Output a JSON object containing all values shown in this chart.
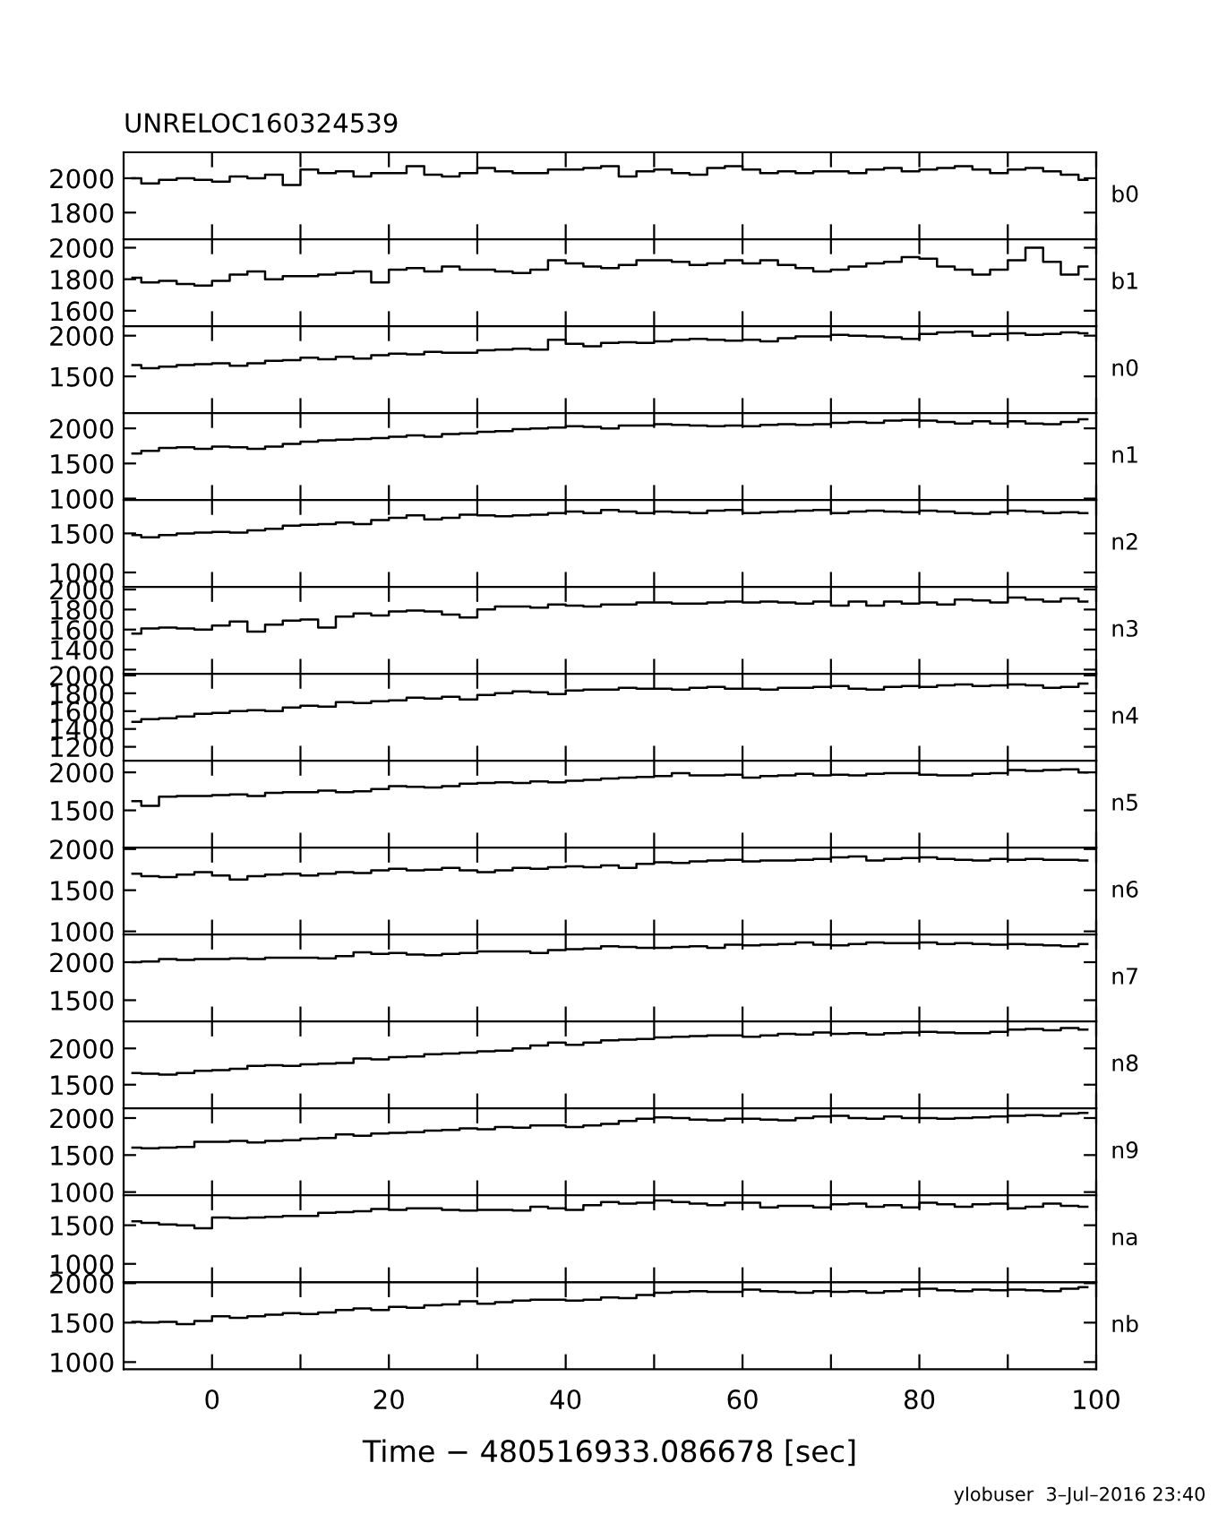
{
  "chart_data": [
    {
      "type": "step",
      "title": "UNRELOC160324539",
      "annotations": [
        "b0"
      ],
      "tick_labels": "y",
      "xlim": [
        -10,
        100
      ],
      "xticks": [
        0,
        {
          "value": 10,
          "label": null
        },
        20,
        {
          "value": 30,
          "label": null
        },
        40,
        {
          "value": 50,
          "label": null
        },
        60,
        {
          "value": 70,
          "label": null
        },
        80,
        {
          "value": 90,
          "label": null
        },
        100
      ],
      "ylim": [
        1645,
        2151
      ],
      "yticks": [
        1800,
        2000
      ],
      "x": [
        -9,
        -7,
        -5,
        -3,
        -1,
        1,
        3,
        5,
        7,
        9,
        11,
        13,
        15,
        17,
        19,
        21,
        23,
        25,
        27,
        29,
        31,
        33,
        35,
        37,
        39,
        41,
        43,
        45,
        47,
        49,
        51,
        53,
        55,
        57,
        59,
        61,
        63,
        65,
        67,
        69,
        71,
        73,
        75,
        77,
        79,
        81,
        83,
        85,
        87,
        89,
        91,
        93,
        95,
        97,
        99
      ],
      "values": [
        2000,
        1970,
        1990,
        2000,
        1990,
        1980,
        2010,
        2000,
        2020,
        1960,
        2050,
        2030,
        2040,
        2010,
        2030,
        2030,
        2070,
        2020,
        2010,
        2030,
        2060,
        2040,
        2030,
        2030,
        2050,
        2050,
        2060,
        2070,
        2010,
        2040,
        2050,
        2030,
        2020,
        2060,
        2070,
        2050,
        2030,
        2040,
        2030,
        2040,
        2040,
        2030,
        2050,
        2060,
        2040,
        2050,
        2060,
        2070,
        2050,
        2030,
        2050,
        2060,
        2040,
        2020,
        1990
      ]
    },
    {
      "type": "step",
      "annotations": [
        "b1"
      ],
      "tick_labels": "y",
      "xlim": [
        -10,
        100
      ],
      "xticks": [
        0,
        {
          "value": 10,
          "label": null
        },
        20,
        {
          "value": 30,
          "label": null
        },
        40,
        {
          "value": 50,
          "label": null
        },
        60,
        {
          "value": 70,
          "label": null
        },
        80,
        {
          "value": 90,
          "label": null
        },
        100
      ],
      "ylim": [
        1502,
        2054
      ],
      "yticks": [
        1600,
        1800,
        2000
      ],
      "x": [
        -9,
        -7,
        -5,
        -3,
        -1,
        1,
        3,
        5,
        7,
        9,
        11,
        13,
        15,
        17,
        19,
        21,
        23,
        25,
        27,
        29,
        31,
        33,
        35,
        37,
        39,
        41,
        43,
        45,
        47,
        49,
        51,
        53,
        55,
        57,
        59,
        61,
        63,
        65,
        67,
        69,
        71,
        73,
        75,
        77,
        79,
        81,
        83,
        85,
        87,
        89,
        91,
        93,
        95,
        97,
        99
      ],
      "values": [
        1810,
        1780,
        1790,
        1770,
        1760,
        1790,
        1830,
        1850,
        1800,
        1820,
        1820,
        1830,
        1840,
        1850,
        1780,
        1860,
        1870,
        1850,
        1880,
        1860,
        1860,
        1850,
        1840,
        1860,
        1920,
        1900,
        1880,
        1870,
        1890,
        1920,
        1920,
        1910,
        1890,
        1900,
        1920,
        1900,
        1920,
        1890,
        1870,
        1850,
        1860,
        1880,
        1900,
        1910,
        1940,
        1930,
        1880,
        1860,
        1830,
        1860,
        1920,
        2000,
        1910,
        1830,
        1880
      ]
    },
    {
      "type": "step",
      "annotations": [
        "n0"
      ],
      "tick_labels": "y",
      "xlim": [
        -10,
        100
      ],
      "xticks": [
        0,
        {
          "value": 10,
          "label": null
        },
        20,
        {
          "value": 30,
          "label": null
        },
        40,
        {
          "value": 50,
          "label": null
        },
        60,
        {
          "value": 70,
          "label": null
        },
        80,
        {
          "value": 90,
          "label": null
        },
        100
      ],
      "ylim": [
        1050,
        2117
      ],
      "yticks": [
        1500,
        2000
      ],
      "x": [
        -9,
        -7,
        -5,
        -3,
        -1,
        1,
        3,
        5,
        7,
        9,
        11,
        13,
        15,
        17,
        19,
        21,
        23,
        25,
        27,
        29,
        31,
        33,
        35,
        37,
        39,
        41,
        43,
        45,
        47,
        49,
        51,
        53,
        55,
        57,
        59,
        61,
        63,
        65,
        67,
        69,
        71,
        73,
        75,
        77,
        79,
        81,
        83,
        85,
        87,
        89,
        91,
        93,
        95,
        97,
        99
      ],
      "values": [
        1640,
        1600,
        1620,
        1640,
        1650,
        1660,
        1630,
        1660,
        1690,
        1700,
        1730,
        1710,
        1740,
        1720,
        1760,
        1780,
        1770,
        1800,
        1790,
        1790,
        1820,
        1830,
        1840,
        1830,
        1950,
        1900,
        1870,
        1910,
        1920,
        1910,
        1930,
        1950,
        1960,
        1950,
        1940,
        1950,
        1930,
        1970,
        1990,
        1990,
        2010,
        2000,
        1990,
        1980,
        1960,
        2020,
        2040,
        2050,
        2000,
        2020,
        2030,
        2010,
        2020,
        2040,
        2030
      ]
    },
    {
      "type": "step",
      "annotations": [
        "n1"
      ],
      "tick_labels": "y",
      "xlim": [
        -10,
        100
      ],
      "xticks": [
        0,
        {
          "value": 10,
          "label": null
        },
        20,
        {
          "value": 30,
          "label": null
        },
        40,
        {
          "value": 50,
          "label": null
        },
        60,
        {
          "value": 70,
          "label": null
        },
        80,
        {
          "value": 90,
          "label": null
        },
        100
      ],
      "ylim": [
        980,
        2218
      ],
      "yticks": [
        1000,
        1500,
        2000
      ],
      "x": [
        -9,
        -7,
        -5,
        -3,
        -1,
        1,
        3,
        5,
        7,
        9,
        11,
        13,
        15,
        17,
        19,
        21,
        23,
        25,
        27,
        29,
        31,
        33,
        35,
        37,
        39,
        41,
        43,
        45,
        47,
        49,
        51,
        53,
        55,
        57,
        59,
        61,
        63,
        65,
        67,
        69,
        71,
        73,
        75,
        77,
        79,
        81,
        83,
        85,
        87,
        89,
        91,
        93,
        95,
        97,
        99
      ],
      "values": [
        1640,
        1680,
        1720,
        1730,
        1710,
        1740,
        1730,
        1710,
        1740,
        1780,
        1810,
        1830,
        1840,
        1850,
        1860,
        1880,
        1900,
        1880,
        1920,
        1930,
        1950,
        1960,
        1990,
        2000,
        2010,
        2030,
        2020,
        2000,
        2040,
        2040,
        2060,
        2050,
        2040,
        2030,
        2040,
        2030,
        2050,
        2060,
        2050,
        2060,
        2080,
        2090,
        2080,
        2110,
        2120,
        2110,
        2090,
        2070,
        2100,
        2070,
        2100,
        2070,
        2060,
        2090,
        2130
      ]
    },
    {
      "type": "step",
      "annotations": [
        "n2"
      ],
      "tick_labels": "y",
      "xlim": [
        -10,
        100
      ],
      "xticks": [
        0,
        {
          "value": 10,
          "label": null
        },
        20,
        {
          "value": 30,
          "label": null
        },
        40,
        {
          "value": 50,
          "label": null
        },
        60,
        {
          "value": 70,
          "label": null
        },
        80,
        {
          "value": 90,
          "label": null
        },
        100
      ],
      "ylim": [
        815,
        1928
      ],
      "yticks": [
        1000,
        1500
      ],
      "x": [
        -9,
        -7,
        -5,
        -3,
        -1,
        1,
        3,
        5,
        7,
        9,
        11,
        13,
        15,
        17,
        19,
        21,
        23,
        25,
        27,
        29,
        31,
        33,
        35,
        37,
        39,
        41,
        43,
        45,
        47,
        49,
        51,
        53,
        55,
        57,
        59,
        61,
        63,
        65,
        67,
        69,
        71,
        73,
        75,
        77,
        79,
        81,
        83,
        85,
        87,
        89,
        91,
        93,
        95,
        97,
        99
      ],
      "values": [
        1480,
        1450,
        1480,
        1500,
        1510,
        1520,
        1510,
        1540,
        1560,
        1600,
        1610,
        1620,
        1640,
        1620,
        1670,
        1700,
        1730,
        1680,
        1700,
        1740,
        1730,
        1720,
        1730,
        1740,
        1760,
        1780,
        1760,
        1800,
        1780,
        1760,
        1780,
        1770,
        1760,
        1790,
        1800,
        1760,
        1770,
        1780,
        1790,
        1800,
        1760,
        1780,
        1790,
        1780,
        1770,
        1790,
        1780,
        1760,
        1750,
        1770,
        1790,
        1780,
        1760,
        1770,
        1760
      ]
    },
    {
      "type": "step",
      "annotations": [
        "n3"
      ],
      "tick_labels": "y",
      "xlim": [
        -10,
        100
      ],
      "xticks": [
        0,
        {
          "value": 10,
          "label": null
        },
        20,
        {
          "value": 30,
          "label": null
        },
        40,
        {
          "value": 50,
          "label": null
        },
        60,
        {
          "value": 70,
          "label": null
        },
        80,
        {
          "value": 90,
          "label": null
        },
        100
      ],
      "ylim": [
        1158,
        2026
      ],
      "yticks": [
        {
          "value": 1200,
          "label": null
        },
        1400,
        1600,
        1800,
        2000
      ],
      "x": [
        -9,
        -7,
        -5,
        -3,
        -1,
        1,
        3,
        5,
        7,
        9,
        11,
        13,
        15,
        17,
        19,
        21,
        23,
        25,
        27,
        29,
        31,
        33,
        35,
        37,
        39,
        41,
        43,
        45,
        47,
        49,
        51,
        53,
        55,
        57,
        59,
        61,
        63,
        65,
        67,
        69,
        71,
        73,
        75,
        77,
        79,
        81,
        83,
        85,
        87,
        89,
        91,
        93,
        95,
        97,
        99
      ],
      "values": [
        1560,
        1610,
        1620,
        1610,
        1600,
        1640,
        1680,
        1580,
        1650,
        1690,
        1700,
        1620,
        1730,
        1760,
        1740,
        1780,
        1790,
        1780,
        1750,
        1720,
        1800,
        1830,
        1830,
        1820,
        1850,
        1840,
        1830,
        1850,
        1850,
        1870,
        1870,
        1860,
        1860,
        1870,
        1880,
        1870,
        1880,
        1870,
        1860,
        1880,
        1840,
        1880,
        1840,
        1880,
        1860,
        1870,
        1850,
        1900,
        1890,
        1870,
        1920,
        1900,
        1880,
        1910,
        1880
      ]
    },
    {
      "type": "step",
      "annotations": [
        "n4"
      ],
      "tick_labels": "y",
      "xlim": [
        -10,
        100
      ],
      "xticks": [
        0,
        {
          "value": 10,
          "label": null
        },
        20,
        {
          "value": 30,
          "label": null
        },
        40,
        {
          "value": 50,
          "label": null
        },
        60,
        {
          "value": 70,
          "label": null
        },
        80,
        {
          "value": 90,
          "label": null
        },
        100
      ],
      "ylim": [
        1044,
        2018
      ],
      "yticks": [
        1200,
        1400,
        1600,
        1800,
        2000
      ],
      "x": [
        -9,
        -7,
        -5,
        -3,
        -1,
        1,
        3,
        5,
        7,
        9,
        11,
        13,
        15,
        17,
        19,
        21,
        23,
        25,
        27,
        29,
        31,
        33,
        35,
        37,
        39,
        41,
        43,
        45,
        47,
        49,
        51,
        53,
        55,
        57,
        59,
        61,
        63,
        65,
        67,
        69,
        71,
        73,
        75,
        77,
        79,
        81,
        83,
        85,
        87,
        89,
        91,
        93,
        95,
        97,
        99
      ],
      "values": [
        1480,
        1510,
        1520,
        1540,
        1570,
        1580,
        1600,
        1610,
        1600,
        1640,
        1660,
        1650,
        1700,
        1690,
        1710,
        1720,
        1750,
        1740,
        1760,
        1730,
        1780,
        1800,
        1820,
        1810,
        1790,
        1830,
        1840,
        1840,
        1860,
        1850,
        1850,
        1840,
        1860,
        1870,
        1850,
        1850,
        1840,
        1860,
        1860,
        1870,
        1880,
        1850,
        1840,
        1870,
        1880,
        1870,
        1890,
        1900,
        1880,
        1890,
        1900,
        1890,
        1860,
        1870,
        1910
      ]
    },
    {
      "type": "step",
      "annotations": [
        "n5"
      ],
      "tick_labels": "y",
      "xlim": [
        -10,
        100
      ],
      "xticks": [
        0,
        {
          "value": 10,
          "label": null
        },
        20,
        {
          "value": 30,
          "label": null
        },
        40,
        {
          "value": 50,
          "label": null
        },
        60,
        {
          "value": 70,
          "label": null
        },
        80,
        {
          "value": 90,
          "label": null
        },
        100
      ],
      "ylim": [
        1009,
        2153
      ],
      "yticks": [
        1500,
        2000
      ],
      "x": [
        -9,
        -7,
        -5,
        -3,
        -1,
        1,
        3,
        5,
        7,
        9,
        11,
        13,
        15,
        17,
        19,
        21,
        23,
        25,
        27,
        29,
        31,
        33,
        35,
        37,
        39,
        41,
        43,
        45,
        47,
        49,
        51,
        53,
        55,
        57,
        59,
        61,
        63,
        65,
        67,
        69,
        71,
        73,
        75,
        77,
        79,
        81,
        83,
        85,
        87,
        89,
        91,
        93,
        95,
        97,
        99
      ],
      "values": [
        1620,
        1560,
        1680,
        1690,
        1690,
        1700,
        1710,
        1690,
        1730,
        1740,
        1740,
        1760,
        1740,
        1750,
        1780,
        1820,
        1810,
        1800,
        1820,
        1850,
        1860,
        1870,
        1860,
        1880,
        1870,
        1890,
        1900,
        1920,
        1930,
        1940,
        1950,
        1990,
        1960,
        1960,
        1970,
        1930,
        1950,
        1960,
        1980,
        1960,
        1970,
        1960,
        1980,
        1990,
        1990,
        1970,
        1960,
        1960,
        1980,
        1990,
        2030,
        2020,
        2030,
        2040,
        2000
      ]
    },
    {
      "type": "step",
      "annotations": [
        "n6"
      ],
      "tick_labels": "y",
      "xlim": [
        -10,
        100
      ],
      "xticks": [
        0,
        {
          "value": 10,
          "label": null
        },
        20,
        {
          "value": 30,
          "label": null
        },
        40,
        {
          "value": 50,
          "label": null
        },
        60,
        {
          "value": 70,
          "label": null
        },
        80,
        {
          "value": 90,
          "label": null
        },
        100
      ],
      "ylim": [
        961,
        2017
      ],
      "yticks": [
        1000,
        1500,
        2000
      ],
      "x": [
        -9,
        -7,
        -5,
        -3,
        -1,
        1,
        3,
        5,
        7,
        9,
        11,
        13,
        15,
        17,
        19,
        21,
        23,
        25,
        27,
        29,
        31,
        33,
        35,
        37,
        39,
        41,
        43,
        45,
        47,
        49,
        51,
        53,
        55,
        57,
        59,
        61,
        63,
        65,
        67,
        69,
        71,
        73,
        75,
        77,
        79,
        81,
        83,
        85,
        87,
        89,
        91,
        93,
        95,
        97,
        99
      ],
      "values": [
        1700,
        1670,
        1660,
        1690,
        1720,
        1680,
        1630,
        1670,
        1690,
        1700,
        1680,
        1700,
        1720,
        1710,
        1740,
        1760,
        1740,
        1750,
        1770,
        1740,
        1720,
        1740,
        1770,
        1760,
        1780,
        1790,
        1780,
        1800,
        1770,
        1820,
        1840,
        1830,
        1850,
        1860,
        1870,
        1850,
        1860,
        1860,
        1870,
        1880,
        1900,
        1910,
        1860,
        1880,
        1890,
        1900,
        1880,
        1870,
        1860,
        1880,
        1870,
        1880,
        1870,
        1870,
        1860
      ]
    },
    {
      "type": "step",
      "annotations": [
        "n7"
      ],
      "tick_labels": "y",
      "xlim": [
        -10,
        100
      ],
      "xticks": [
        0,
        {
          "value": 10,
          "label": null
        },
        20,
        {
          "value": 30,
          "label": null
        },
        40,
        {
          "value": 50,
          "label": null
        },
        60,
        {
          "value": 70,
          "label": null
        },
        80,
        {
          "value": 90,
          "label": null
        },
        100
      ],
      "ylim": [
        1220,
        2363
      ],
      "yticks": [
        1500,
        2000
      ],
      "x": [
        -9,
        -7,
        -5,
        -3,
        -1,
        1,
        3,
        5,
        7,
        9,
        11,
        13,
        15,
        17,
        19,
        21,
        23,
        25,
        27,
        29,
        31,
        33,
        35,
        37,
        39,
        41,
        43,
        45,
        47,
        49,
        51,
        53,
        55,
        57,
        59,
        61,
        63,
        65,
        67,
        69,
        71,
        73,
        75,
        77,
        79,
        81,
        83,
        85,
        87,
        89,
        91,
        93,
        95,
        97,
        99
      ],
      "values": [
        2000,
        2010,
        2040,
        2030,
        2040,
        2040,
        2050,
        2040,
        2060,
        2060,
        2060,
        2050,
        2080,
        2130,
        2110,
        2120,
        2100,
        2090,
        2110,
        2120,
        2140,
        2140,
        2140,
        2120,
        2160,
        2170,
        2180,
        2210,
        2200,
        2190,
        2190,
        2200,
        2210,
        2190,
        2230,
        2220,
        2230,
        2240,
        2260,
        2230,
        2220,
        2240,
        2260,
        2250,
        2250,
        2260,
        2240,
        2250,
        2240,
        2230,
        2240,
        2230,
        2220,
        2210,
        2240
      ]
    },
    {
      "type": "step",
      "annotations": [
        "n8"
      ],
      "tick_labels": "y",
      "xlim": [
        -10,
        100
      ],
      "xticks": [
        0,
        {
          "value": 10,
          "label": null
        },
        20,
        {
          "value": 30,
          "label": null
        },
        40,
        {
          "value": 50,
          "label": null
        },
        60,
        {
          "value": 70,
          "label": null
        },
        80,
        {
          "value": 90,
          "label": null
        },
        100
      ],
      "ylim": [
        1173,
        2371
      ],
      "yticks": [
        1500,
        2000
      ],
      "x": [
        -9,
        -7,
        -5,
        -3,
        -1,
        1,
        3,
        5,
        7,
        9,
        11,
        13,
        15,
        17,
        19,
        21,
        23,
        25,
        27,
        29,
        31,
        33,
        35,
        37,
        39,
        41,
        43,
        45,
        47,
        49,
        51,
        53,
        55,
        57,
        59,
        61,
        63,
        65,
        67,
        69,
        71,
        73,
        75,
        77,
        79,
        81,
        83,
        85,
        87,
        89,
        91,
        93,
        95,
        97,
        99
      ],
      "values": [
        1660,
        1650,
        1640,
        1660,
        1690,
        1700,
        1720,
        1760,
        1770,
        1760,
        1780,
        1790,
        1800,
        1860,
        1850,
        1880,
        1890,
        1920,
        1930,
        1940,
        1960,
        1970,
        2000,
        2040,
        2080,
        2050,
        2080,
        2110,
        2120,
        2130,
        2150,
        2160,
        2170,
        2180,
        2180,
        2160,
        2180,
        2200,
        2190,
        2220,
        2200,
        2210,
        2190,
        2210,
        2220,
        2230,
        2220,
        2210,
        2210,
        2230,
        2260,
        2270,
        2250,
        2280,
        2260
      ]
    },
    {
      "type": "step",
      "annotations": [
        "n9"
      ],
      "tick_labels": "y",
      "xlim": [
        -10,
        100
      ],
      "xticks": [
        0,
        {
          "value": 10,
          "label": null
        },
        20,
        {
          "value": 30,
          "label": null
        },
        40,
        {
          "value": 50,
          "label": null
        },
        60,
        {
          "value": 70,
          "label": null
        },
        80,
        {
          "value": 90,
          "label": null
        },
        100
      ],
      "ylim": [
        956,
        2130
      ],
      "yticks": [
        1000,
        1500,
        2000
      ],
      "x": [
        -9,
        -7,
        -5,
        -3,
        -1,
        1,
        3,
        5,
        7,
        9,
        11,
        13,
        15,
        17,
        19,
        21,
        23,
        25,
        27,
        29,
        31,
        33,
        35,
        37,
        39,
        41,
        43,
        45,
        47,
        49,
        51,
        53,
        55,
        57,
        59,
        61,
        63,
        65,
        67,
        69,
        71,
        73,
        75,
        77,
        79,
        81,
        83,
        85,
        87,
        89,
        91,
        93,
        95,
        97,
        99
      ],
      "values": [
        1600,
        1590,
        1600,
        1610,
        1680,
        1680,
        1690,
        1670,
        1690,
        1700,
        1720,
        1730,
        1780,
        1760,
        1790,
        1800,
        1810,
        1830,
        1840,
        1860,
        1850,
        1880,
        1870,
        1900,
        1900,
        1880,
        1900,
        1920,
        1960,
        1990,
        2010,
        2000,
        1980,
        1970,
        1990,
        1990,
        1980,
        1970,
        2000,
        2020,
        2030,
        2000,
        1990,
        2020,
        2000,
        2000,
        1990,
        2000,
        2010,
        2020,
        2030,
        2040,
        2030,
        2060,
        2070
      ]
    },
    {
      "type": "step",
      "annotations": [
        "na"
      ],
      "tick_labels": "y",
      "xlim": [
        -10,
        100
      ],
      "xticks": [
        0,
        {
          "value": 10,
          "label": null
        },
        20,
        {
          "value": 30,
          "label": null
        },
        40,
        {
          "value": 50,
          "label": null
        },
        60,
        {
          "value": 70,
          "label": null
        },
        80,
        {
          "value": 90,
          "label": null
        },
        100
      ],
      "ylim": [
        762,
        1887
      ],
      "yticks": [
        1000,
        1500
      ],
      "x": [
        -9,
        -7,
        -5,
        -3,
        -1,
        1,
        3,
        5,
        7,
        9,
        11,
        13,
        15,
        17,
        19,
        21,
        23,
        25,
        27,
        29,
        31,
        33,
        35,
        37,
        39,
        41,
        43,
        45,
        47,
        49,
        51,
        53,
        55,
        57,
        59,
        61,
        63,
        65,
        67,
        69,
        71,
        73,
        75,
        77,
        79,
        81,
        83,
        85,
        87,
        89,
        91,
        93,
        95,
        97,
        99
      ],
      "values": [
        1550,
        1530,
        1510,
        1500,
        1460,
        1600,
        1590,
        1600,
        1610,
        1620,
        1620,
        1660,
        1670,
        1680,
        1710,
        1700,
        1720,
        1720,
        1700,
        1690,
        1700,
        1700,
        1690,
        1740,
        1720,
        1700,
        1760,
        1800,
        1780,
        1790,
        1820,
        1800,
        1780,
        1760,
        1790,
        1790,
        1730,
        1750,
        1750,
        1730,
        1770,
        1780,
        1740,
        1760,
        1730,
        1790,
        1770,
        1740,
        1770,
        1780,
        1720,
        1740,
        1780,
        1750,
        1740
      ]
    },
    {
      "type": "step",
      "annotations": [
        "nb",
        "ylobuser  3–Jul–2016 23:40"
      ],
      "xlabel": "Time − 480516933.086678 [sec]",
      "xlim": [
        -10,
        100
      ],
      "xticks": [
        0,
        {
          "value": 10,
          "label": null
        },
        20,
        {
          "value": 30,
          "label": null
        },
        40,
        {
          "value": 50,
          "label": null
        },
        60,
        {
          "value": 70,
          "label": null
        },
        80,
        {
          "value": 90,
          "label": null
        },
        100
      ],
      "ylim": [
        910,
        2012
      ],
      "yticks": [
        1000,
        1500,
        2000
      ],
      "x": [
        -9,
        -7,
        -5,
        -3,
        -1,
        1,
        3,
        5,
        7,
        9,
        11,
        13,
        15,
        17,
        19,
        21,
        23,
        25,
        27,
        29,
        31,
        33,
        35,
        37,
        39,
        41,
        43,
        45,
        47,
        49,
        51,
        53,
        55,
        57,
        59,
        61,
        63,
        65,
        67,
        69,
        71,
        73,
        75,
        77,
        79,
        81,
        83,
        85,
        87,
        89,
        91,
        93,
        95,
        97,
        99
      ],
      "values": [
        1510,
        1500,
        1510,
        1480,
        1520,
        1580,
        1560,
        1580,
        1600,
        1620,
        1610,
        1630,
        1660,
        1680,
        1660,
        1700,
        1690,
        1720,
        1730,
        1770,
        1740,
        1760,
        1780,
        1790,
        1790,
        1780,
        1790,
        1820,
        1810,
        1850,
        1880,
        1890,
        1900,
        1890,
        1890,
        1920,
        1900,
        1890,
        1880,
        1900,
        1890,
        1900,
        1880,
        1900,
        1920,
        1930,
        1910,
        1900,
        1920,
        1910,
        1920,
        1910,
        1900,
        1930,
        1950
      ]
    }
  ]
}
